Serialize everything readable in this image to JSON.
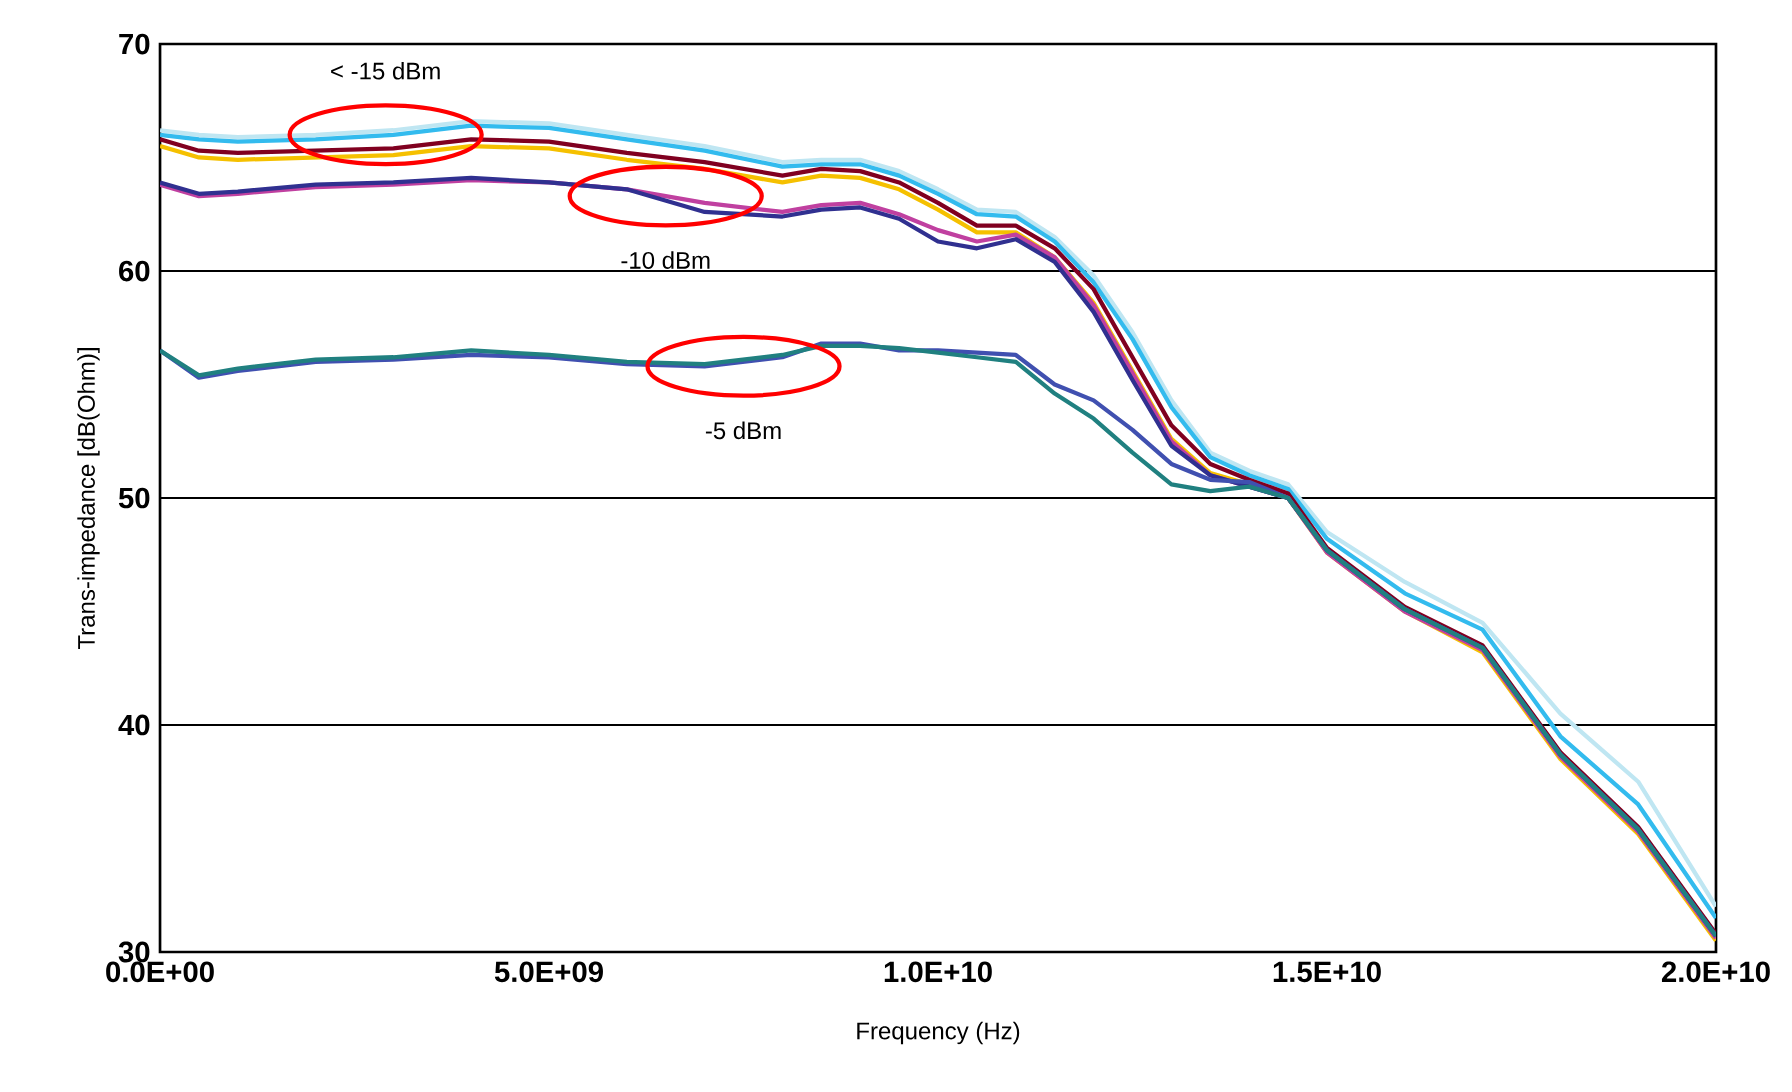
{
  "chart_data": {
    "type": "line",
    "xlabel": "Frequency (Hz)",
    "ylabel": "Trans-impedance [dB(Ohm)]",
    "x": [
      0,
      500000000.0,
      1000000000.0,
      2000000000.0,
      3000000000.0,
      4000000000.0,
      5000000000.0,
      6000000000.0,
      7000000000.0,
      8000000000.0,
      8500000000.0,
      9000000000.0,
      9500000000.0,
      10000000000.0,
      10500000000.0,
      11000000000.0,
      11500000000.0,
      12000000000.0,
      12500000000.0,
      13000000000.0,
      13500000000.0,
      14000000000.0,
      14500000000.0,
      15000000000.0,
      16000000000.0,
      17000000000.0,
      18000000000.0,
      19000000000.0,
      20000000000.0
    ],
    "series": [
      {
        "color": "#bfe6f2",
        "values": [
          66.2,
          66.0,
          65.9,
          66.0,
          66.2,
          66.6,
          66.5,
          66.0,
          65.5,
          64.8,
          64.9,
          64.9,
          64.4,
          63.6,
          62.7,
          62.6,
          61.5,
          59.8,
          57.3,
          54.3,
          52.0,
          51.2,
          50.6,
          48.5,
          46.3,
          44.5,
          40.5,
          37.5,
          32.0
        ]
      },
      {
        "color": "#33bbee",
        "values": [
          66.0,
          65.8,
          65.7,
          65.8,
          66.0,
          66.4,
          66.3,
          65.8,
          65.3,
          64.6,
          64.7,
          64.7,
          64.2,
          63.4,
          62.5,
          62.4,
          61.3,
          59.5,
          57.0,
          54.0,
          51.8,
          51.0,
          50.4,
          48.2,
          45.8,
          44.2,
          39.5,
          36.5,
          31.5
        ]
      },
      {
        "color": "#f5c000",
        "values": [
          65.5,
          65.0,
          64.9,
          65.0,
          65.1,
          65.5,
          65.4,
          64.9,
          64.5,
          63.9,
          64.2,
          64.1,
          63.6,
          62.7,
          61.7,
          61.7,
          60.6,
          58.6,
          55.6,
          52.6,
          51.1,
          50.6,
          50.0,
          47.6,
          45.0,
          43.2,
          38.5,
          35.2,
          30.5
        ]
      },
      {
        "color": "#800020",
        "values": [
          65.8,
          65.3,
          65.2,
          65.3,
          65.4,
          65.8,
          65.7,
          65.2,
          64.8,
          64.2,
          64.5,
          64.4,
          63.9,
          63.0,
          62.0,
          62.0,
          61.0,
          59.2,
          56.2,
          53.2,
          51.5,
          50.8,
          50.2,
          47.8,
          45.2,
          43.5,
          38.8,
          35.5,
          30.8
        ]
      },
      {
        "color": "#c040a0",
        "values": [
          63.8,
          63.3,
          63.4,
          63.7,
          63.8,
          64.0,
          63.9,
          63.6,
          63.0,
          62.6,
          62.9,
          63.0,
          62.5,
          61.8,
          61.3,
          61.6,
          60.6,
          58.5,
          55.5,
          52.5,
          51.0,
          50.5,
          50.0,
          47.6,
          45.0,
          43.3,
          38.6,
          35.3,
          30.6
        ]
      },
      {
        "color": "#303090",
        "values": [
          63.9,
          63.4,
          63.5,
          63.8,
          63.9,
          64.1,
          63.9,
          63.6,
          62.6,
          62.4,
          62.7,
          62.8,
          62.3,
          61.3,
          61.0,
          61.4,
          60.4,
          58.2,
          55.2,
          52.3,
          51.0,
          50.5,
          50.0,
          47.7,
          45.1,
          43.4,
          38.7,
          35.4,
          30.7
        ]
      },
      {
        "color": "#4050b0",
        "values": [
          56.5,
          55.3,
          55.6,
          56.0,
          56.1,
          56.3,
          56.2,
          55.9,
          55.8,
          56.2,
          56.8,
          56.8,
          56.5,
          56.5,
          56.4,
          56.3,
          55.0,
          54.3,
          53.0,
          51.5,
          50.8,
          50.7,
          50.0,
          47.7,
          45.1,
          43.4,
          38.7,
          35.4,
          30.7
        ]
      },
      {
        "color": "#208080",
        "values": [
          56.5,
          55.4,
          55.7,
          56.1,
          56.2,
          56.5,
          56.3,
          56.0,
          55.9,
          56.3,
          56.7,
          56.7,
          56.6,
          56.4,
          56.2,
          56.0,
          54.6,
          53.5,
          52.0,
          50.6,
          50.3,
          50.5,
          50.0,
          47.7,
          45.1,
          43.4,
          38.7,
          35.4,
          30.7
        ]
      }
    ],
    "xlim": [
      0,
      20000000000.0
    ],
    "ylim": [
      30,
      70
    ],
    "xticks": [
      {
        "value": 0,
        "label": "0.0E+00"
      },
      {
        "value": 5000000000.0,
        "label": "5.0E+09"
      },
      {
        "value": 10000000000.0,
        "label": "1.0E+10"
      },
      {
        "value": 15000000000.0,
        "label": "1.5E+10"
      },
      {
        "value": 20000000000.0,
        "label": "2.0E+10"
      }
    ],
    "yticks": [
      30,
      40,
      50,
      60,
      70
    ],
    "grid": "y",
    "marker": "none",
    "line_style": "solid",
    "annotations": [
      {
        "text": "< -15 dBm",
        "x": 2900000000.0,
        "y": 66
      },
      {
        "text": "-10 dBm",
        "x": 6500000000.0,
        "y": 63.3
      },
      {
        "text": "-5 dBm",
        "x": 7500000000.0,
        "y": 55.8
      }
    ]
  }
}
